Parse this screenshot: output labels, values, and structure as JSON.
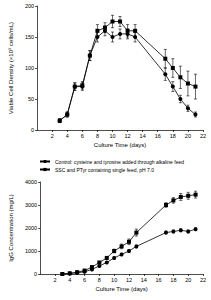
{
  "chart_data": [
    {
      "type": "line",
      "x_label": "Culture Time (days)",
      "y_label": "Viable Cell Density (×10⁵ cells/mL)",
      "x": [
        3,
        4,
        5,
        6,
        7,
        8,
        9,
        10,
        11,
        12,
        13,
        17,
        18,
        19,
        20,
        21
      ],
      "series": [
        {
          "name": "Control: cysteine and tyrosine added through alkaline feed",
          "color": "#000000",
          "marker": "circle",
          "values": [
            15,
            25,
            70,
            70,
            120,
            150,
            160,
            150,
            155,
            155,
            150,
            90,
            70,
            50,
            35,
            25
          ],
          "errors": [
            3,
            4,
            6,
            6,
            8,
            8,
            8,
            8,
            8,
            8,
            8,
            10,
            8,
            6,
            5,
            4
          ]
        },
        {
          "name": "SSC and PTyr containing single feed, pH 7.0",
          "color": "#000000",
          "marker": "square",
          "values": [
            15,
            25,
            70,
            72,
            120,
            160,
            165,
            175,
            175,
            160,
            160,
            115,
            100,
            85,
            75,
            70
          ],
          "errors": [
            3,
            4,
            6,
            6,
            8,
            10,
            8,
            10,
            8,
            10,
            10,
            15,
            15,
            18,
            20,
            20
          ]
        }
      ],
      "xlim": [
        0,
        22
      ],
      "xticks": [
        2,
        4,
        6,
        8,
        10,
        12,
        14,
        16,
        18,
        20,
        22
      ],
      "ylim": [
        0,
        200
      ],
      "yticks": [
        0,
        50,
        100,
        150,
        200
      ]
    },
    {
      "type": "line",
      "x_label": "Culture Time (days)",
      "y_label": "IgG Concentration (mg/L)",
      "legend": "top-left",
      "x": [
        3,
        4,
        5,
        6,
        7,
        8,
        9,
        10,
        11,
        12,
        13,
        17,
        18,
        19,
        20,
        21
      ],
      "series": [
        {
          "name": "Control: cysteine and tyrosine added through alkaline feed",
          "color": "#000000",
          "marker": "circle",
          "values": [
            0,
            20,
            50,
            100,
            200,
            350,
            500,
            700,
            850,
            1000,
            1200,
            1800,
            1850,
            1900,
            1850,
            1950
          ],
          "errors": [
            0,
            5,
            10,
            15,
            20,
            30,
            40,
            50,
            50,
            60,
            60,
            60,
            60,
            60,
            60,
            60
          ]
        },
        {
          "name": "SSC and PTyr containing single feed, pH 7.0",
          "color": "#000000",
          "marker": "square",
          "values": [
            0,
            30,
            80,
            150,
            300,
            500,
            700,
            1000,
            1200,
            1400,
            1800,
            3000,
            3200,
            3350,
            3400,
            3450
          ],
          "errors": [
            0,
            5,
            10,
            20,
            30,
            40,
            60,
            80,
            100,
            120,
            150,
            100,
            120,
            150,
            150,
            150
          ]
        }
      ],
      "xlim": [
        0,
        22
      ],
      "xticks": [
        2,
        4,
        6,
        8,
        10,
        12,
        14,
        16,
        18,
        20,
        22
      ],
      "ylim": [
        0,
        4000
      ],
      "yticks": [
        0,
        1000,
        2000,
        3000,
        4000
      ]
    }
  ]
}
